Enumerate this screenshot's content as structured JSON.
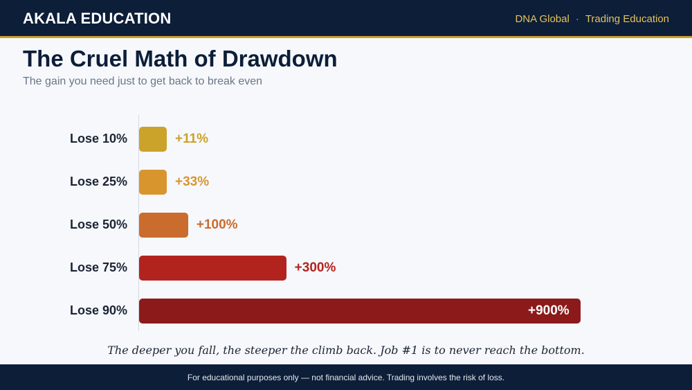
{
  "header": {
    "brand": "AKALA EDUCATION",
    "links": [
      "DNA Global",
      "Trading Education"
    ],
    "separator": "·"
  },
  "chart_data": {
    "type": "bar",
    "orientation": "horizontal",
    "title": "The Cruel Math of Drawdown",
    "subtitle": "The gain you need just to get back to break even",
    "categories": [
      "Lose 10%",
      "Lose 25%",
      "Lose 50%",
      "Lose 75%",
      "Lose 90%"
    ],
    "values": [
      11,
      33,
      100,
      300,
      900
    ],
    "value_labels": [
      "+11%",
      "+33%",
      "+100%",
      "+300%",
      "+900%"
    ],
    "colors": [
      "#cba22a",
      "#d8952e",
      "#c96c2d",
      "#b3231e",
      "#8c1a1a"
    ],
    "xlim": [
      0,
      900
    ],
    "grid": false,
    "legend": "none"
  },
  "caption": "The deeper you fall, the steeper the climb back. Job #1 is to never reach the bottom.",
  "footer": {
    "text": "For educational purposes only — not financial advice. Trading involves the risk of loss."
  }
}
